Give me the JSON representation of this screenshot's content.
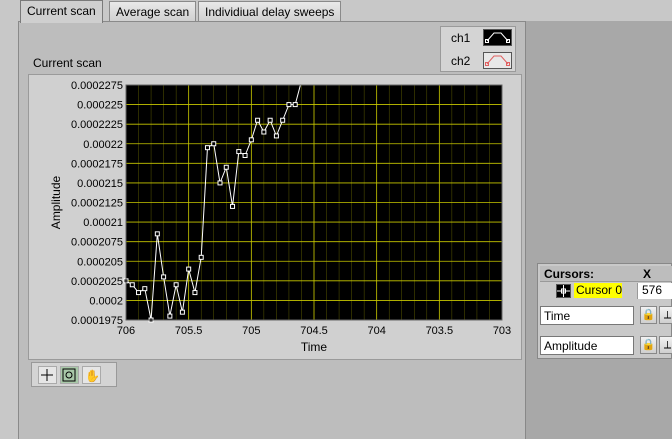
{
  "tabs": [
    {
      "label": "Current scan",
      "active": true
    },
    {
      "label": "Average scan",
      "active": false
    },
    {
      "label": "Individiual delay sweeps",
      "active": false
    }
  ],
  "graph": {
    "title": "Current scan",
    "xlabel": "Time",
    "ylabel": "Amplitude"
  },
  "legend": {
    "items": [
      {
        "label": "ch1",
        "color": "#ffffff",
        "icon": "line-with-square-markers-icon"
      },
      {
        "label": "ch2",
        "color": "#e06060",
        "icon": "line-with-square-markers-icon"
      }
    ]
  },
  "cursors": {
    "header_label": "Cursors:",
    "x_header": "X",
    "cursor_name": "Cursor 0",
    "cursor_x": "576",
    "x_axis_field": "Time",
    "y_axis_field": "Amplitude"
  },
  "palette": {
    "tools": [
      "cursor-move-icon",
      "zoom-icon",
      "pan-hand-icon"
    ]
  },
  "colors": {
    "plot_bg": "#000000",
    "grid": "#c8c800",
    "trace": "#ffffff",
    "cursor_highlight": "#ffff00"
  },
  "chart_data": {
    "type": "line",
    "title": "Current scan",
    "xlabel": "Time",
    "ylabel": "Amplitude",
    "xlim": [
      706,
      703
    ],
    "ylim": [
      0.0001975,
      0.0002275
    ],
    "x_reversed": true,
    "grid": true,
    "x_ticks": [
      "706",
      "705.5",
      "705",
      "704.5",
      "704",
      "703.5",
      "703"
    ],
    "y_ticks": [
      "0.0002275",
      "0.000225",
      "0.0002225",
      "0.00022",
      "0.0002175",
      "0.000215",
      "0.0002125",
      "0.00021",
      "0.0002075",
      "0.000205",
      "0.0002025",
      "0.0002",
      "0.0001975"
    ],
    "series": [
      {
        "name": "ch1",
        "x": [
          706,
          705.95,
          705.9,
          705.85,
          705.8,
          705.75,
          705.7,
          705.65,
          705.6,
          705.55,
          705.5,
          705.45,
          705.4,
          705.35,
          705.3,
          705.25,
          705.2,
          705.15,
          705.1,
          705.05,
          705,
          704.95,
          704.9,
          704.85,
          704.8,
          704.75,
          704.7,
          704.65,
          704.6,
          704.55,
          704.5,
          704.45,
          704.4,
          704.35,
          704.3,
          704.25,
          704.2
        ],
        "y": [
          0.0002025,
          0.000202,
          0.000201,
          0.0002015,
          0.0001975,
          0.0002085,
          0.000203,
          0.000198,
          0.000202,
          0.0001985,
          0.000204,
          0.000201,
          0.0002055,
          0.0002195,
          0.00022,
          0.000215,
          0.000217,
          0.000212,
          0.000219,
          0.0002185,
          0.0002205,
          0.000223,
          0.0002215,
          0.000223,
          0.000221,
          0.000223,
          0.000225,
          0.000225,
          0.000228,
          0.000228,
          0.000228,
          0.000228,
          0.000228,
          0.000228,
          0.000228,
          0.000228,
          0.000228
        ]
      }
    ]
  }
}
